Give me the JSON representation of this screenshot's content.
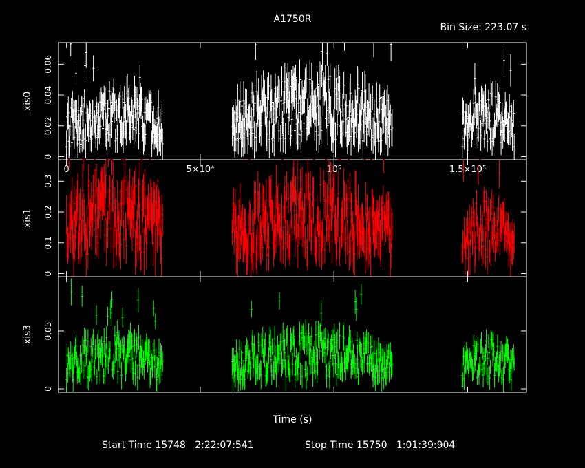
{
  "title": "A1750R",
  "bin_size_label": "Bin Size: 223.07 s",
  "xlabel": "Time (s)",
  "footer": {
    "start_label": "Start Time 15748   2:22:07:541",
    "stop_label": "Stop Time 15750   1:01:39:904"
  },
  "colors": {
    "background": "#000000",
    "axes": "#ffffff",
    "xis0": "#ffffff",
    "xis1": "#ff0000",
    "xis3": "#00ff00"
  },
  "chart_data": [
    {
      "type": "scatter",
      "name": "xis0",
      "ylabel": "xis0",
      "color": "#ffffff",
      "xlim": [
        -3000,
        172000
      ],
      "ylim": [
        -0.002,
        0.074
      ],
      "xticks": [
        {
          "v": 0,
          "label": "0"
        },
        {
          "v": 50000,
          "label": "5×10⁴"
        },
        {
          "v": 100000,
          "label": "10⁵"
        },
        {
          "v": 150000,
          "label": "1.5×10⁵"
        }
      ],
      "yticks": [
        {
          "v": 0,
          "label": "0"
        },
        {
          "v": 0.02,
          "label": "0.02"
        },
        {
          "v": 0.04,
          "label": "0.04"
        },
        {
          "v": 0.06,
          "label": "0.06"
        }
      ],
      "segments": [
        [
          0,
          36000,
          0.023
        ],
        [
          62000,
          122000,
          0.027
        ],
        [
          148000,
          167500,
          0.022
        ]
      ],
      "x": [],
      "y": [],
      "err": []
    },
    {
      "type": "scatter",
      "name": "xis1",
      "ylabel": "xis1",
      "color": "#ff0000",
      "xlim": [
        -3000,
        172000
      ],
      "ylim": [
        -0.01,
        0.37
      ],
      "xticks": [
        {
          "v": 0,
          "label": ""
        },
        {
          "v": 50000,
          "label": ""
        },
        {
          "v": 100000,
          "label": ""
        },
        {
          "v": 150000,
          "label": ""
        }
      ],
      "yticks": [
        {
          "v": 0,
          "label": "0"
        },
        {
          "v": 0.1,
          "label": "0.1"
        },
        {
          "v": 0.2,
          "label": "0.2"
        },
        {
          "v": 0.3,
          "label": "0.3"
        }
      ],
      "segments": [
        [
          0,
          36000,
          0.17
        ],
        [
          62000,
          122000,
          0.16
        ],
        [
          148000,
          167500,
          0.12
        ]
      ],
      "x": [],
      "y": [],
      "err": []
    },
    {
      "type": "scatter",
      "name": "xis3",
      "ylabel": "xis3",
      "color": "#00ff00",
      "xlim": [
        -3000,
        172000
      ],
      "ylim": [
        -0.003,
        0.097
      ],
      "xticks": [
        {
          "v": 0,
          "label": ""
        },
        {
          "v": 50000,
          "label": ""
        },
        {
          "v": 100000,
          "label": ""
        },
        {
          "v": 150000,
          "label": ""
        }
      ],
      "yticks": [
        {
          "v": 0,
          "label": "0"
        },
        {
          "v": 0.05,
          "label": "0.05"
        }
      ],
      "segments": [
        [
          0,
          36000,
          0.025
        ],
        [
          62000,
          122000,
          0.025
        ],
        [
          148000,
          167500,
          0.022
        ]
      ],
      "x": [],
      "y": [],
      "err": []
    }
  ]
}
